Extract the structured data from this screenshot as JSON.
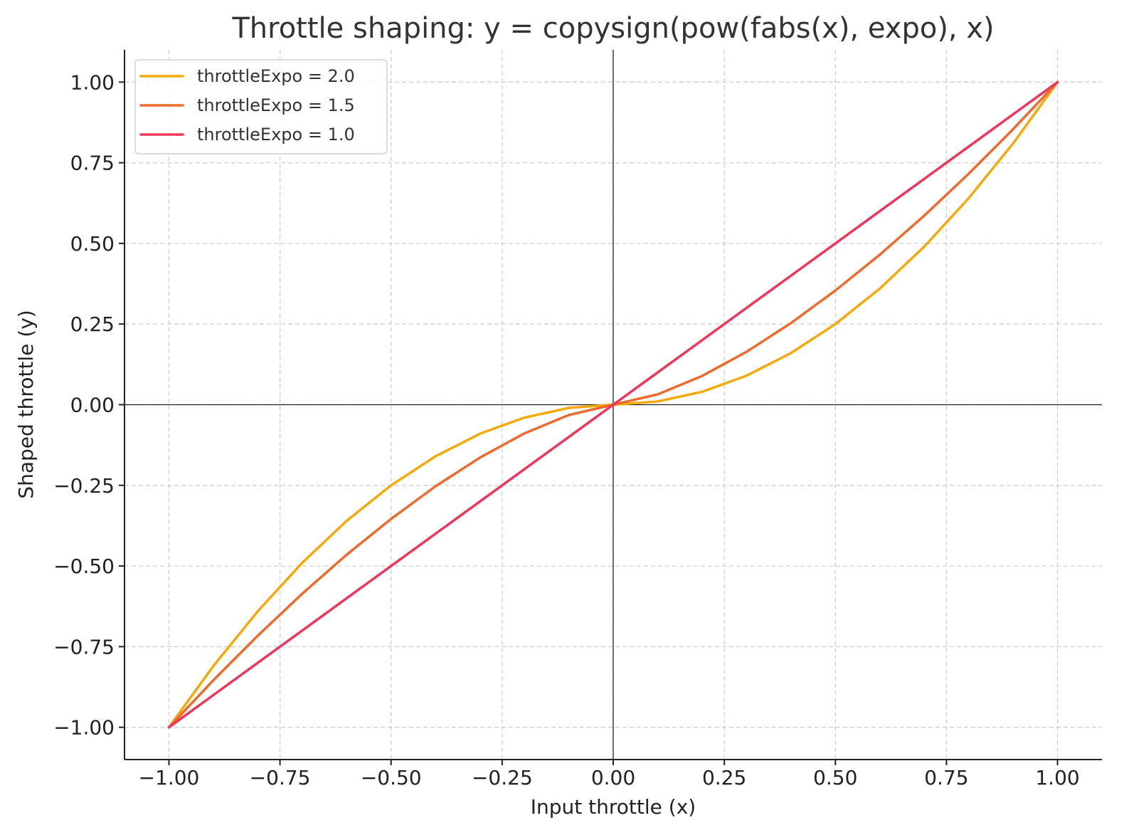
{
  "chart_data": {
    "type": "line",
    "title": "Throttle shaping: y = copysign(pow(fabs(x), expo), x)",
    "xlabel": "Input throttle (x)",
    "ylabel": "Shaped throttle (y)",
    "xlim": [
      -1.1,
      1.1
    ],
    "ylim": [
      -1.1,
      1.1
    ],
    "x_ticks": [
      -1.0,
      -0.75,
      -0.5,
      -0.25,
      0.0,
      0.25,
      0.5,
      0.75,
      1.0
    ],
    "y_ticks": [
      -1.0,
      -0.75,
      -0.5,
      -0.25,
      0.0,
      0.25,
      0.5,
      0.75,
      1.0
    ],
    "x_tick_labels": [
      "−1.00",
      "−0.75",
      "−0.50",
      "−0.25",
      "0.00",
      "0.25",
      "0.50",
      "0.75",
      "1.00"
    ],
    "y_tick_labels": [
      "−1.00",
      "−0.75",
      "−0.50",
      "−0.25",
      "0.00",
      "0.25",
      "0.50",
      "0.75",
      "1.00"
    ],
    "grid": true,
    "legend_position": "top-left",
    "x": [
      -1.0,
      -0.9,
      -0.8,
      -0.7,
      -0.6,
      -0.5,
      -0.4,
      -0.3,
      -0.2,
      -0.1,
      0.0,
      0.1,
      0.2,
      0.3,
      0.4,
      0.5,
      0.6,
      0.7,
      0.8,
      0.9,
      1.0
    ],
    "series": [
      {
        "name": "throttleExpo = 2.0",
        "color": "#f5a90a",
        "values": [
          -1.0,
          -0.81,
          -0.64,
          -0.49,
          -0.36,
          -0.25,
          -0.16,
          -0.09,
          -0.04,
          -0.01,
          0.0,
          0.01,
          0.04,
          0.09,
          0.16,
          0.25,
          0.36,
          0.49,
          0.64,
          0.81,
          1.0
        ]
      },
      {
        "name": "throttleExpo = 1.5",
        "color": "#ee6a2d",
        "values": [
          -1.0,
          -0.854,
          -0.716,
          -0.586,
          -0.465,
          -0.354,
          -0.253,
          -0.164,
          -0.089,
          -0.032,
          0.0,
          0.032,
          0.089,
          0.164,
          0.253,
          0.354,
          0.465,
          0.586,
          0.716,
          0.854,
          1.0
        ]
      },
      {
        "name": "throttleExpo = 1.0",
        "color": "#ef3559",
        "values": [
          -1.0,
          -0.9,
          -0.8,
          -0.7,
          -0.6,
          -0.5,
          -0.4,
          -0.3,
          -0.2,
          -0.1,
          0.0,
          0.1,
          0.2,
          0.3,
          0.4,
          0.5,
          0.6,
          0.7,
          0.8,
          0.9,
          1.0
        ]
      }
    ]
  }
}
